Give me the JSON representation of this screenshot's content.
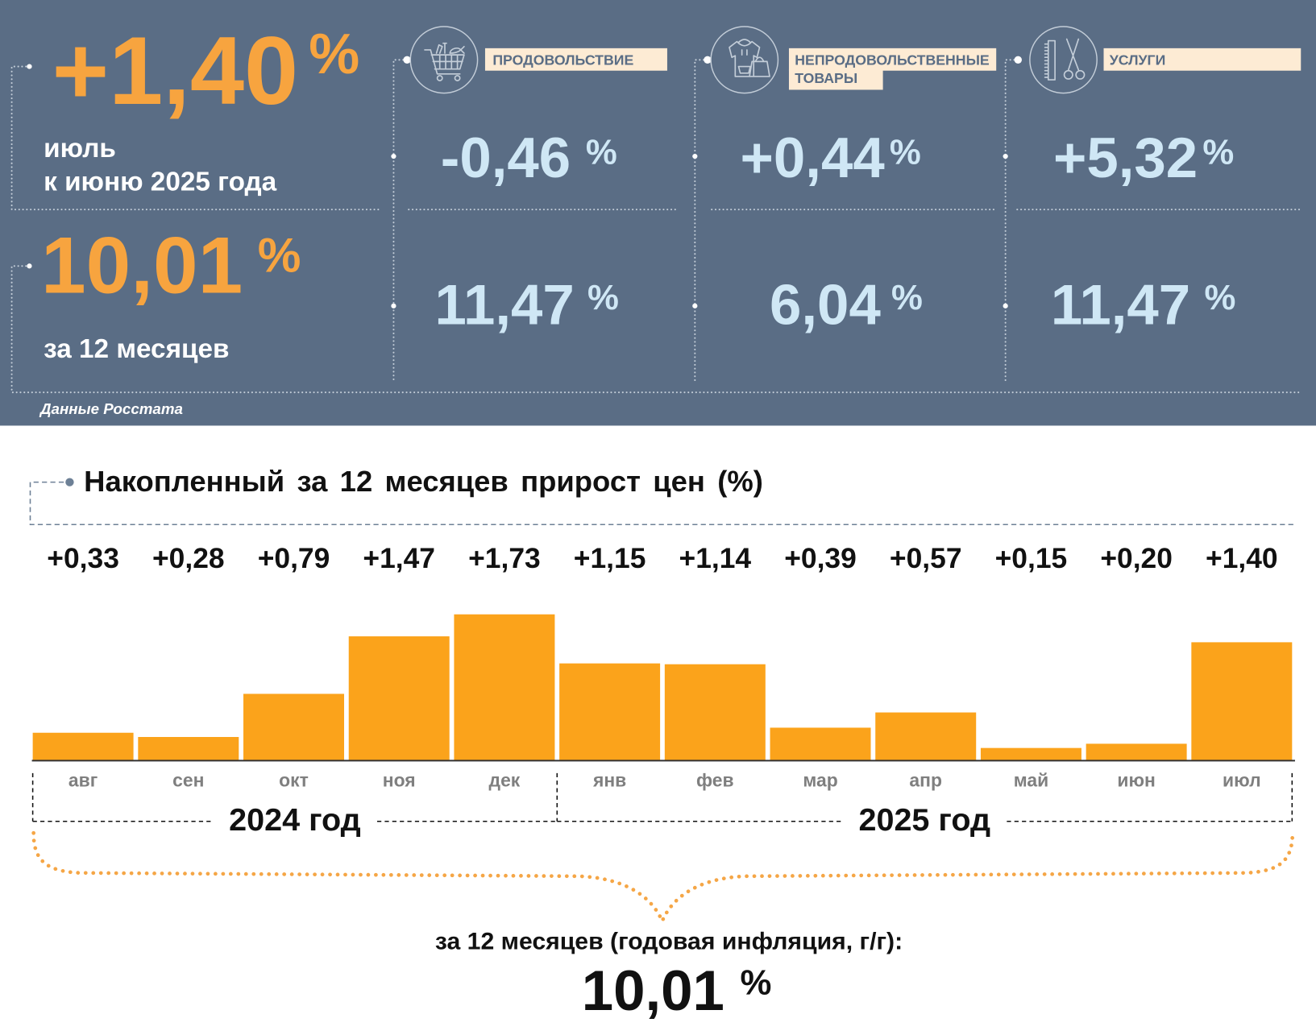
{
  "summary": {
    "monthly_change": {
      "value": "+1,40",
      "unit": "%",
      "period_line1": "июль",
      "period_line2": "к июню 2025 года"
    },
    "annual_change": {
      "value": "10,01",
      "unit": "%",
      "period": "за 12 месяцев"
    },
    "source": "Данные Росстата"
  },
  "categories": [
    {
      "label_lines": [
        "ПРОДОВОЛЬСТВИЕ"
      ],
      "icon": "shopping-cart-icon",
      "monthly_value": "-0,46",
      "annual_value": "11,47",
      "unit": "%"
    },
    {
      "label_lines": [
        "НЕПРОДОВОЛЬСТВЕННЫЕ",
        "ТОВАРЫ"
      ],
      "icon": "hoodie-and-handbag-icon",
      "monthly_value": "+0,44",
      "annual_value": "6,04",
      "unit": "%"
    },
    {
      "label_lines": [
        "УСЛУГИ"
      ],
      "icon": "comb-and-scissors-icon",
      "monthly_value": "+5,32",
      "annual_value": "11,47",
      "unit": "%"
    }
  ],
  "chart_data": {
    "type": "bar",
    "title": "Накопленный за 12 месяцев прирост цен (%)",
    "categories": [
      "авг",
      "сен",
      "окт",
      "ноя",
      "дек",
      "янв",
      "фев",
      "мар",
      "апр",
      "май",
      "июн",
      "июл"
    ],
    "values": [
      0.33,
      0.28,
      0.79,
      1.47,
      1.73,
      1.15,
      1.14,
      0.39,
      0.57,
      0.15,
      0.2,
      1.4
    ],
    "data_labels": [
      "+0,33",
      "+0,28",
      "+0,79",
      "+1,47",
      "+1,73",
      "+1,15",
      "+1,14",
      "+0,39",
      "+0,57",
      "+0,15",
      "+0,20",
      "+1,40"
    ],
    "year_groups": [
      {
        "label": "2024 год",
        "months": 5
      },
      {
        "label": "2025 год",
        "months": 7
      }
    ],
    "grid": false
  },
  "annual_total": {
    "label": "за 12 месяцев (годовая инфляция, г/г):",
    "value": "10,01",
    "unit": "%"
  },
  "colors": {
    "panel_background": "#5a6d85",
    "accent_orange": "#f7a43f",
    "bar_orange": "#fba31b",
    "value_light_blue": "#cfe7f5",
    "label_background": "#fdebd4",
    "label_text": "#5a6d85",
    "divider": "#c3cdd8",
    "text_dark": "#111111",
    "bracket_gray": "#6d8096",
    "month_gray": "#7f7f7f",
    "brace_orange": "#f5a646"
  }
}
